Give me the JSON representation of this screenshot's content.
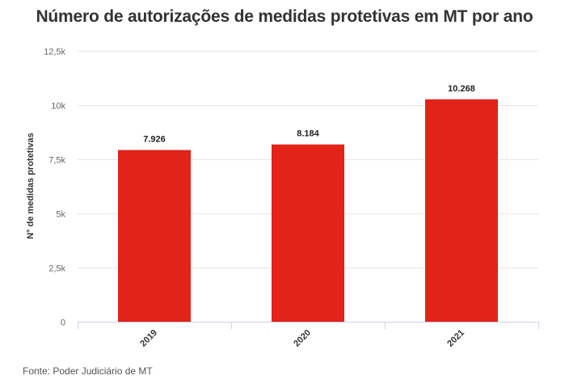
{
  "chart_data": {
    "type": "bar",
    "title": "Número de autorizações de medidas protetivas em MT por ano",
    "ylabel": "N° de medidas protetivas",
    "xlabel": "",
    "categories": [
      "2019",
      "2020",
      "2021"
    ],
    "values": [
      7926,
      8184,
      10268
    ],
    "value_labels": [
      "7.926",
      "8.184",
      "10.268"
    ],
    "ylim": [
      0,
      12500
    ],
    "yticks": [
      0,
      2500,
      5000,
      7500,
      10000,
      12500
    ],
    "ytick_labels": [
      "0",
      "2,5k",
      "5k",
      "7,5k",
      "10k",
      "12,5k"
    ],
    "grid": true,
    "bar_color": "#e2231a"
  },
  "source": "Fonte: Poder Judiciário de MT"
}
